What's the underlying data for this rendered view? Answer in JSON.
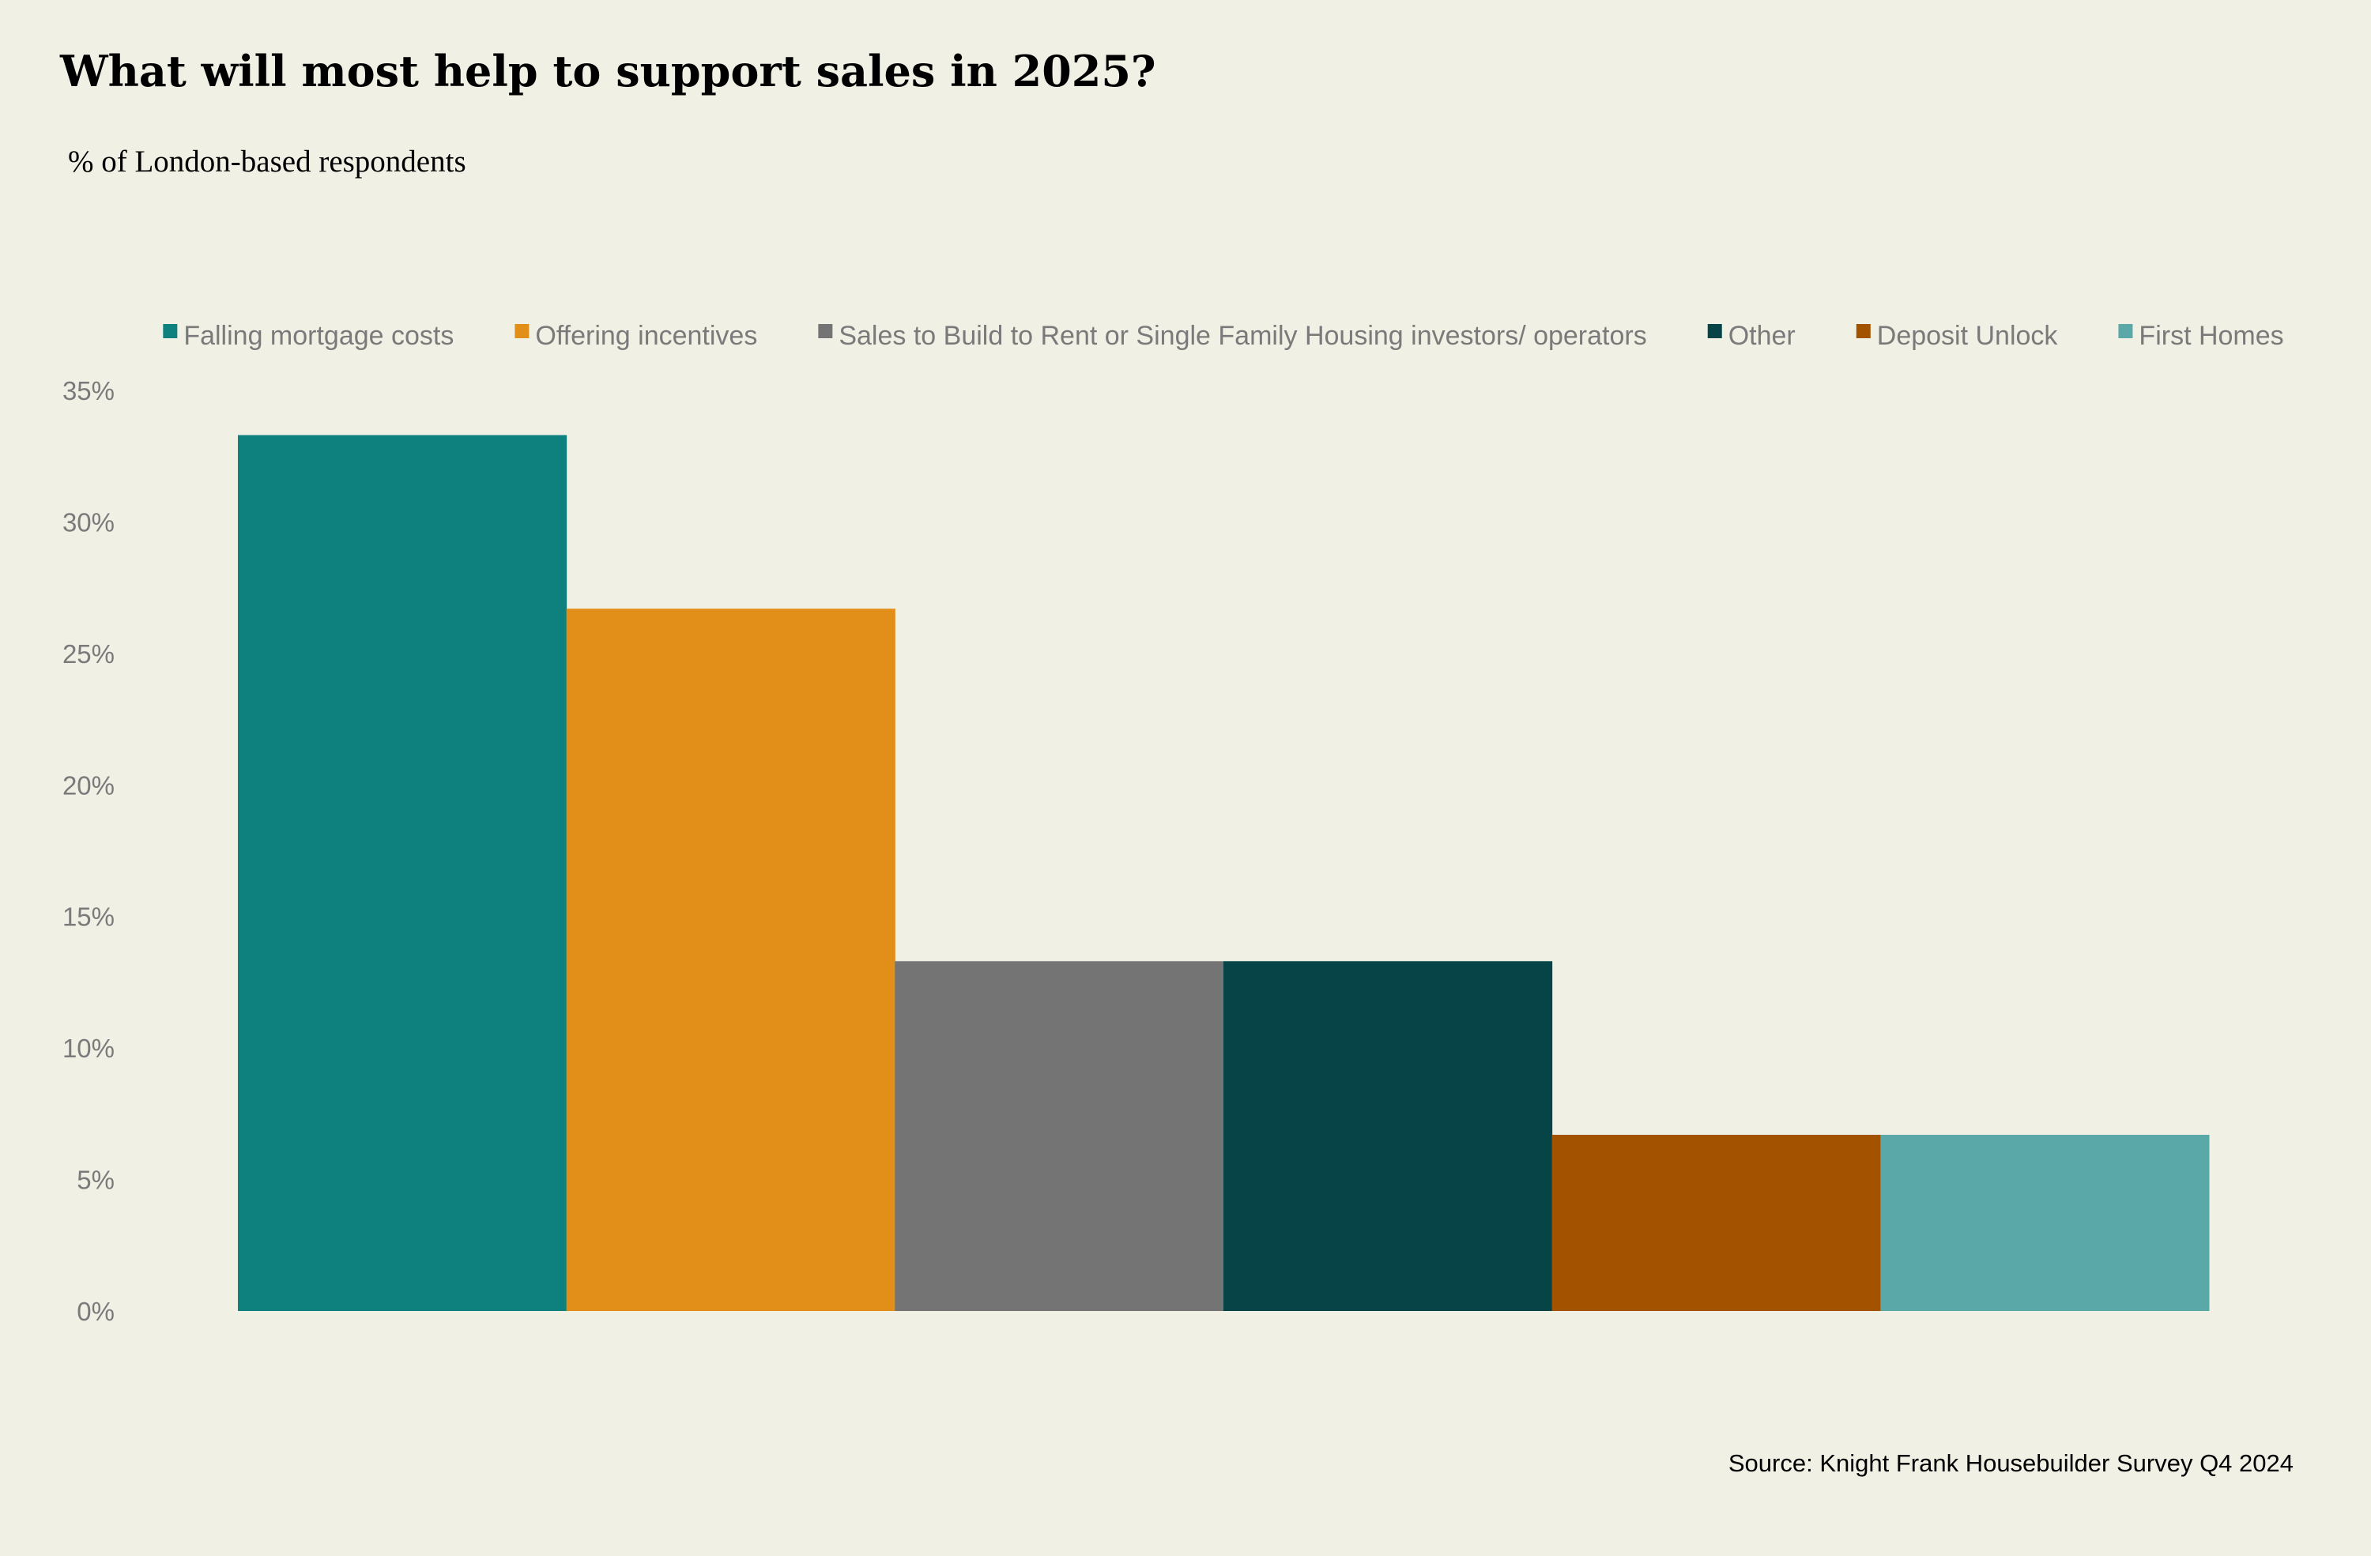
{
  "title": "What will most help to support sales in 2025?",
  "subtitle": "% of London-based respondents",
  "source": "Source: Knight Frank Housebuilder Survey Q4 2024",
  "chart_data": {
    "type": "bar",
    "title": "What will most help to support sales in 2025?",
    "subtitle": "% of London-based respondents",
    "xlabel": "",
    "ylabel": "",
    "ylim": [
      0,
      35
    ],
    "y_ticks": [
      0,
      5,
      10,
      15,
      20,
      25,
      30,
      35
    ],
    "y_tick_labels": [
      "0%",
      "5%",
      "10%",
      "15%",
      "20%",
      "25%",
      "30%",
      "35%"
    ],
    "grid": false,
    "legend_position": "top",
    "series": [
      {
        "name": "Falling mortgage costs",
        "value": 33.3,
        "color": "#0e807d"
      },
      {
        "name": "Offering incentives",
        "value": 26.7,
        "color": "#e18f18"
      },
      {
        "name": "Sales to Build to Rent or Single Family Housing investors/ operators",
        "value": 13.3,
        "color": "#747474"
      },
      {
        "name": "Other",
        "value": 13.3,
        "color": "#064447"
      },
      {
        "name": "Deposit Unlock",
        "value": 6.7,
        "color": "#a35200"
      },
      {
        "name": "First Homes",
        "value": 6.7,
        "color": "#5ba8a9"
      }
    ]
  }
}
